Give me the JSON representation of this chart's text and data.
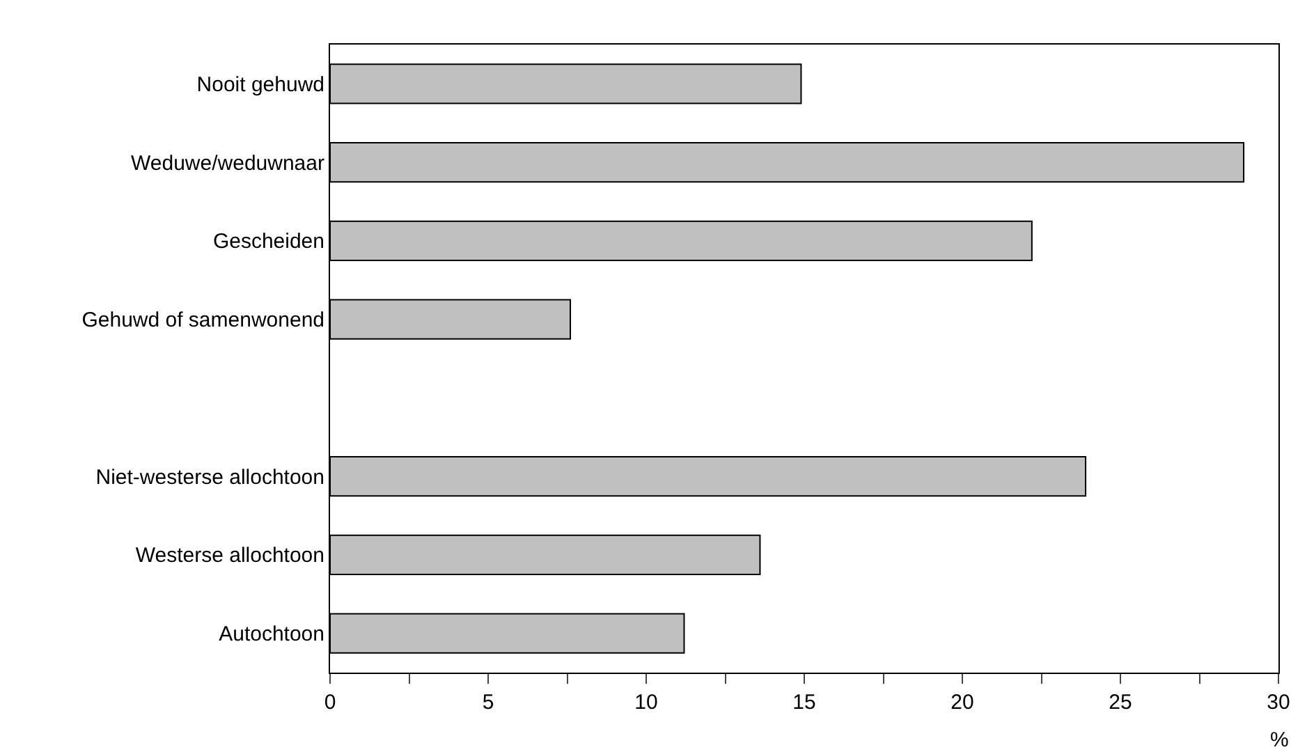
{
  "chart_data": {
    "type": "bar",
    "orientation": "horizontal",
    "categories": [
      "Nooit gehuwd",
      "Weduwe/weduwnaar",
      "Gescheiden",
      "Gehuwd of samenwonend",
      null,
      "Niet-westerse allochtoon",
      "Westerse allochtoon",
      "Autochtoon"
    ],
    "values": [
      14.9,
      28.9,
      22.2,
      7.6,
      null,
      23.9,
      13.6,
      11.2
    ],
    "color": "#c0c0c0",
    "xlim": [
      0,
      30
    ],
    "xticks": [
      0,
      {
        "value": 2.5,
        "label": null
      },
      5,
      {
        "value": 7.5,
        "label": null
      },
      10,
      {
        "value": 12.5,
        "label": null
      },
      15,
      {
        "value": 17.5,
        "label": null
      },
      20,
      {
        "value": 22.5,
        "label": null
      },
      25,
      {
        "value": 27.5,
        "label": null
      },
      30
    ],
    "xlabel": "%",
    "grid": false,
    "legend": false
  }
}
